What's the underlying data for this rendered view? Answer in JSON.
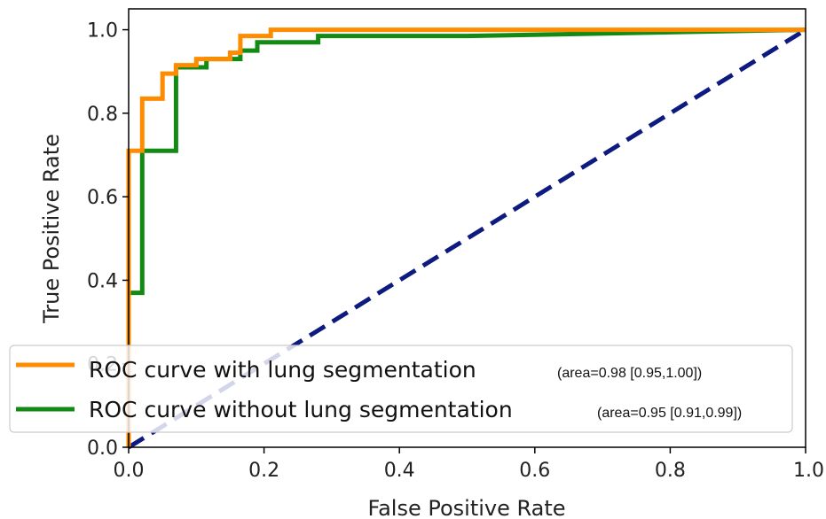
{
  "chart_data": {
    "type": "line",
    "title": "",
    "xlabel": "False Positive Rate",
    "ylabel": "True Positive Rate",
    "xlim": [
      0.0,
      1.0
    ],
    "ylim": [
      0.0,
      1.05
    ],
    "xticks": [
      "0.0",
      "0.2",
      "0.4",
      "0.6",
      "0.8",
      "1.0"
    ],
    "yticks": [
      "0.0",
      "0.2",
      "0.4",
      "0.6",
      "0.8",
      "1.0"
    ],
    "grid": false,
    "legend_position": "lower-right",
    "series": [
      {
        "name": "ROC curve with lung segmentation",
        "annotation": "(area=0.98 [0.95,1.00])",
        "color": "#ff8c00",
        "x": [
          0.0,
          0.0,
          0.02,
          0.02,
          0.05,
          0.05,
          0.07,
          0.07,
          0.1,
          0.1,
          0.15,
          0.15,
          0.165,
          0.165,
          0.21,
          0.21,
          1.0
        ],
        "y": [
          0.0,
          0.71,
          0.71,
          0.835,
          0.835,
          0.895,
          0.895,
          0.915,
          0.915,
          0.93,
          0.93,
          0.945,
          0.945,
          0.985,
          0.985,
          1.0,
          1.0
        ]
      },
      {
        "name": "ROC curve without lung segmentation",
        "annotation": "(area=0.95 [0.91,0.99])",
        "color": "#138a13",
        "x": [
          0.0,
          0.0,
          0.02,
          0.02,
          0.07,
          0.07,
          0.115,
          0.115,
          0.165,
          0.165,
          0.19,
          0.19,
          0.28,
          0.28,
          0.5,
          1.0
        ],
        "y": [
          0.0,
          0.37,
          0.37,
          0.71,
          0.71,
          0.91,
          0.91,
          0.93,
          0.93,
          0.95,
          0.95,
          0.97,
          0.97,
          0.985,
          0.985,
          1.0
        ]
      },
      {
        "name": "",
        "style": "dashed",
        "color": "#0d1a80",
        "x": [
          0.0,
          1.0
        ],
        "y": [
          0.0,
          1.0
        ]
      }
    ]
  }
}
